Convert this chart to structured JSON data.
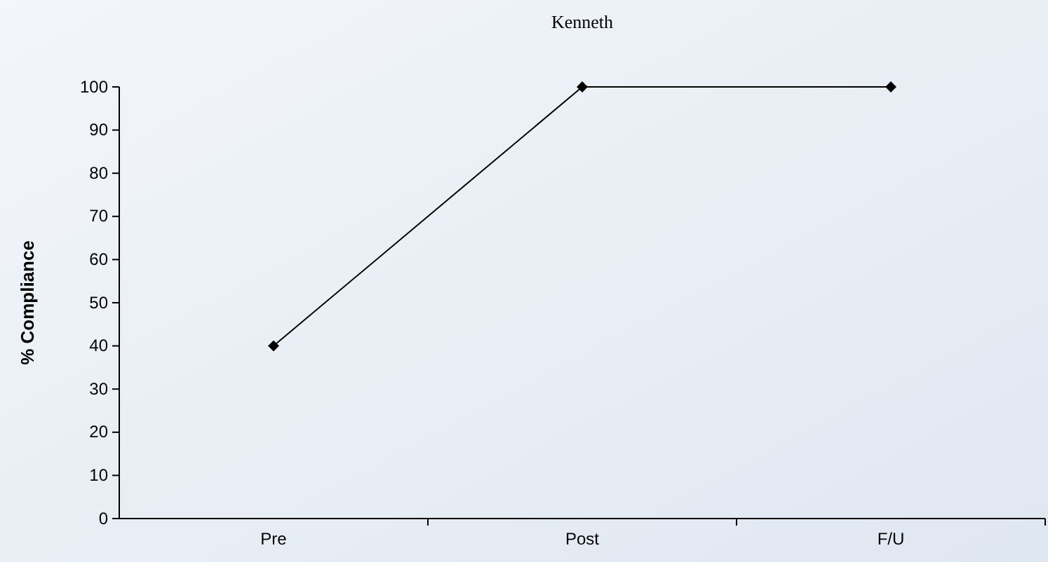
{
  "chart_data": {
    "type": "line",
    "title": "Kenneth",
    "ylabel": "% Compliance",
    "categories": [
      "Pre",
      "Post",
      "F/U"
    ],
    "series": [
      {
        "color": "#000000",
        "values": [
          40,
          100,
          100
        ]
      }
    ],
    "ylim": [
      0,
      100
    ],
    "yticks": [
      0,
      10,
      20,
      30,
      40,
      50,
      60,
      70,
      80,
      90,
      100
    ],
    "grid": false,
    "marker": "diamond",
    "line_style": "solid"
  }
}
